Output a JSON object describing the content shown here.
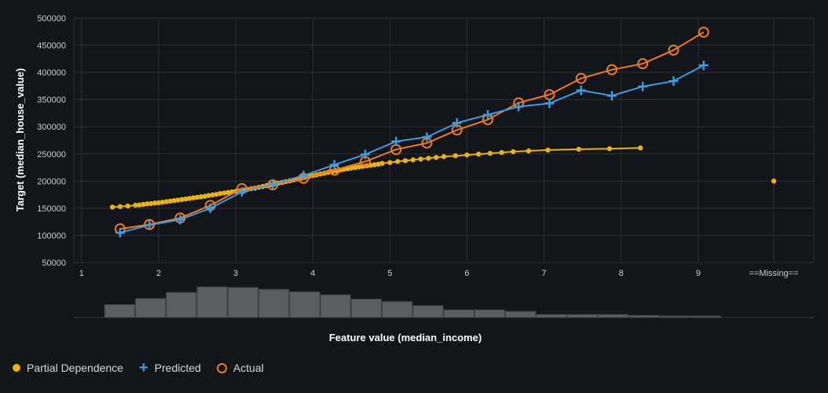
{
  "chart_data": {
    "type": "line",
    "xlabel": "Feature value (median_income)",
    "ylabel": "Target (median_house_value)",
    "xlim": [
      0.9,
      10.5
    ],
    "ylim": [
      50000,
      500000
    ],
    "x_ticks": [
      "1",
      "2",
      "3",
      "4",
      "5",
      "6",
      "7",
      "8",
      "9"
    ],
    "x_tick_values": [
      1,
      2,
      3,
      4,
      5,
      6,
      7,
      8,
      9
    ],
    "y_ticks": [
      "50000",
      "100000",
      "150000",
      "200000",
      "250000",
      "300000",
      "350000",
      "400000",
      "450000",
      "500000"
    ],
    "y_tick_values": [
      50000,
      100000,
      150000,
      200000,
      250000,
      300000,
      350000,
      400000,
      450000,
      500000
    ],
    "missing_label": "==Missing==",
    "missing_x": 9.98,
    "missing_value": 200000,
    "colors": {
      "pd": "#e8b311",
      "predicted": "#3d9ddf",
      "actual": "#f07a1f"
    },
    "series": [
      {
        "name": "Partial Dependence",
        "x": [
          1.4,
          1.5,
          1.6,
          1.7,
          1.75,
          1.8,
          1.85,
          1.9,
          1.95,
          2.0,
          2.05,
          2.1,
          2.15,
          2.2,
          2.25,
          2.3,
          2.35,
          2.4,
          2.45,
          2.5,
          2.55,
          2.6,
          2.65,
          2.7,
          2.75,
          2.8,
          2.85,
          2.9,
          2.95,
          3.0,
          3.05,
          3.1,
          3.15,
          3.2,
          3.25,
          3.3,
          3.35,
          3.4,
          3.45,
          3.5,
          3.55,
          3.6,
          3.65,
          3.7,
          3.75,
          3.8,
          3.85,
          3.9,
          3.95,
          4.0,
          4.05,
          4.1,
          4.15,
          4.2,
          4.25,
          4.3,
          4.35,
          4.4,
          4.45,
          4.5,
          4.55,
          4.6,
          4.65,
          4.7,
          4.75,
          4.8,
          4.85,
          4.9,
          5.0,
          5.1,
          5.2,
          5.3,
          5.4,
          5.5,
          5.6,
          5.7,
          5.85,
          6.0,
          6.15,
          6.3,
          6.45,
          6.6,
          6.8,
          7.05,
          7.45,
          7.85,
          8.25
        ],
        "values": [
          152000,
          153000,
          154000,
          155500,
          156000,
          157000,
          158000,
          158500,
          159500,
          160000,
          161000,
          162000,
          163000,
          164000,
          165000,
          166000,
          167000,
          168000,
          169000,
          170000,
          171000,
          172000,
          173500,
          174500,
          175500,
          177000,
          178000,
          179000,
          180000,
          181000,
          182000,
          183000,
          184500,
          186000,
          187000,
          188500,
          190000,
          191500,
          193000,
          194500,
          196000,
          197500,
          199000,
          200500,
          202000,
          204000,
          205500,
          207000,
          208500,
          210000,
          211500,
          213000,
          214500,
          216000,
          217500,
          219000,
          220000,
          221500,
          222500,
          224000,
          225000,
          226000,
          227000,
          228000,
          229000,
          230000,
          231000,
          232500,
          234000,
          236000,
          237500,
          239000,
          240500,
          242000,
          243500,
          245000,
          246500,
          248000,
          249500,
          251000,
          252500,
          254000,
          255500,
          257000,
          258500,
          259500,
          261000
        ]
      },
      {
        "name": "Predicted",
        "x": [
          1.5,
          1.88,
          2.28,
          2.67,
          3.08,
          3.48,
          3.88,
          4.28,
          4.68,
          5.08,
          5.48,
          5.87,
          6.27,
          6.67,
          7.07,
          7.48,
          7.88,
          8.28,
          8.68,
          9.07
        ],
        "values": [
          105000,
          119000,
          129000,
          150000,
          180000,
          194000,
          210000,
          230000,
          249000,
          273000,
          281000,
          307000,
          322000,
          337000,
          343000,
          367000,
          357000,
          374000,
          384000,
          413000
        ]
      },
      {
        "name": "Actual",
        "x": [
          1.5,
          1.88,
          2.28,
          2.67,
          3.08,
          3.48,
          3.88,
          4.28,
          4.68,
          5.08,
          5.48,
          5.87,
          6.27,
          6.67,
          7.07,
          7.48,
          7.88,
          8.28,
          8.68,
          9.07
        ],
        "values": [
          112000,
          120000,
          132000,
          155000,
          186000,
          193000,
          205000,
          220000,
          236000,
          258000,
          270000,
          294000,
          313000,
          344000,
          359000,
          389000,
          405000,
          416000,
          441000,
          474000
        ]
      }
    ],
    "histogram": {
      "bin_starts": [
        1.3,
        1.7,
        2.1,
        2.5,
        2.9,
        3.3,
        3.7,
        4.1,
        4.5,
        4.9,
        5.3,
        5.7,
        6.1,
        6.5,
        6.9,
        7.3,
        7.7,
        8.1,
        8.5,
        8.9
      ],
      "bin_width": 0.4,
      "relative_counts": [
        0.42,
        0.62,
        0.82,
        1.0,
        0.98,
        0.92,
        0.84,
        0.74,
        0.6,
        0.52,
        0.39,
        0.25,
        0.25,
        0.2,
        0.1,
        0.1,
        0.1,
        0.07,
        0.05,
        0.05
      ]
    }
  },
  "legend": {
    "pd_label": "Partial Dependence",
    "predicted_label": "Predicted",
    "actual_label": "Actual"
  }
}
